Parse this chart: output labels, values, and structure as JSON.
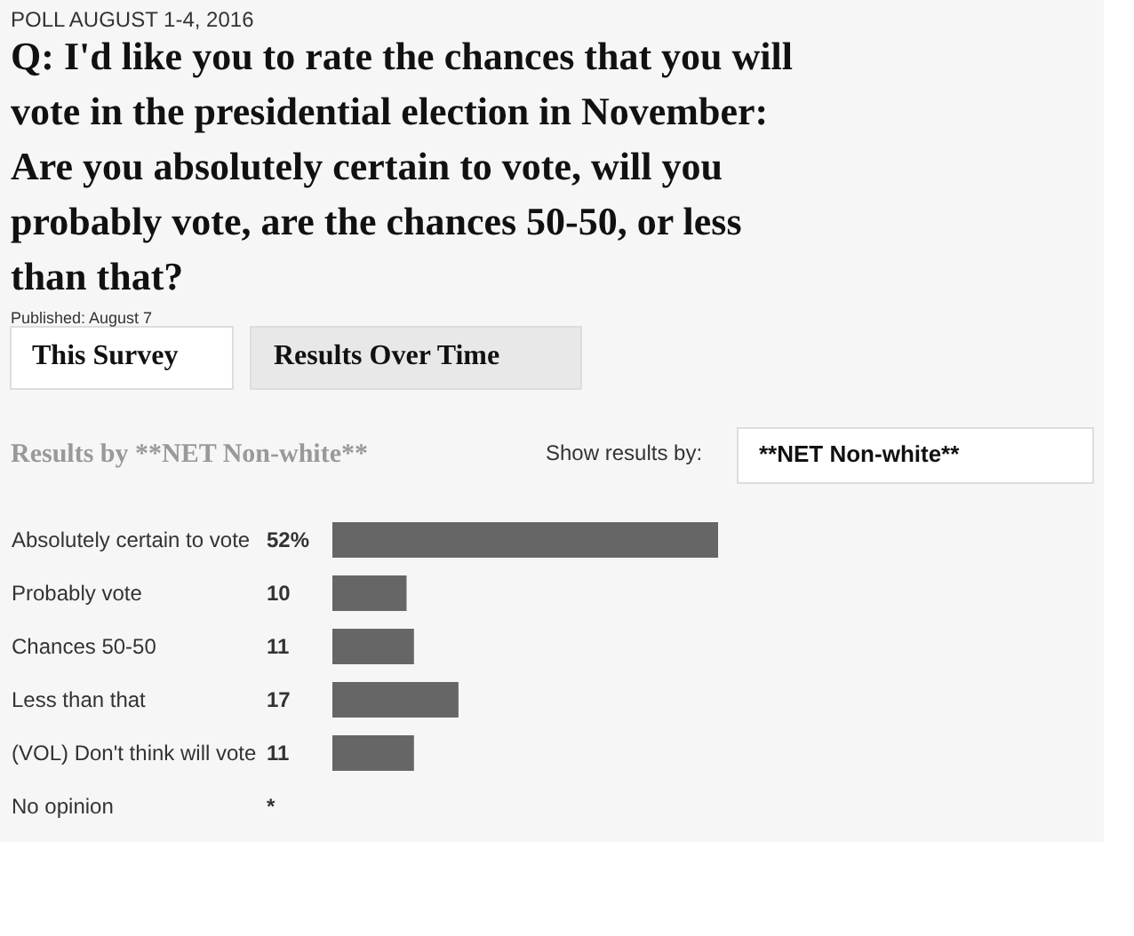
{
  "chart_data": {
    "type": "bar",
    "orientation": "horizontal",
    "title": "Q: I'd like you to rate the chances that you will vote in the presidential election in November: Are you absolutely certain to vote, will you probably vote, are the chances 50-50, or less than that?",
    "subtitle": "Published: August 7",
    "categories": [
      "Absolutely certain to vote",
      "Probably vote",
      "Chances 50-50",
      "Less than that",
      "(VOL) Don't think will vote",
      "No opinion"
    ],
    "values": [
      52,
      10,
      11,
      17,
      11,
      null
    ],
    "value_labels": [
      "52%",
      "10",
      "11",
      "17",
      "11",
      "*"
    ],
    "color": "#666666",
    "annotations": [
      "POLL AUGUST 1-4, 2016",
      "This Survey",
      "Results Over Time",
      "Results by **NET Non-white**",
      "Show results by:",
      "**NET Non-white**"
    ]
  }
}
